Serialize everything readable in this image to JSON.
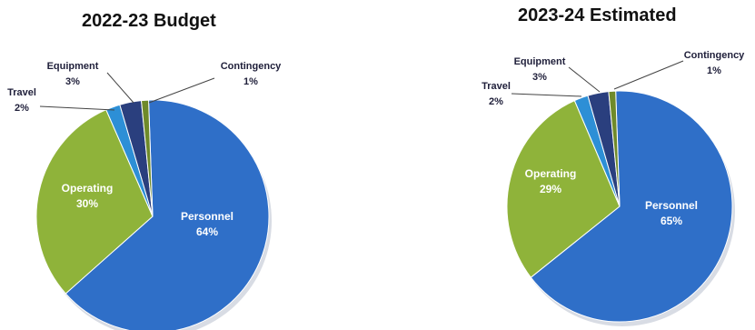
{
  "chart_data": [
    {
      "type": "pie",
      "title": "2022-23 Budget",
      "slices": [
        {
          "label": "Personnel",
          "value": 64,
          "display": "64%",
          "color": "#2f6fc8"
        },
        {
          "label": "Operating",
          "value": 30,
          "display": "30%",
          "color": "#8fb33a"
        },
        {
          "label": "Travel",
          "value": 2,
          "display": "2%",
          "color": "#2d8fd6"
        },
        {
          "label": "Equipment",
          "value": 3,
          "display": "3%",
          "color": "#2a3f7e"
        },
        {
          "label": "Contingency",
          "value": 1,
          "display": "1%",
          "color": "#6f8a2a"
        }
      ]
    },
    {
      "type": "pie",
      "title": "2023-24 Estimated",
      "slices": [
        {
          "label": "Personnel",
          "value": 65,
          "display": "65%",
          "color": "#2f6fc8"
        },
        {
          "label": "Operating",
          "value": 29,
          "display": "29%",
          "color": "#8fb33a"
        },
        {
          "label": "Travel",
          "value": 2,
          "display": "2%",
          "color": "#2d8fd6"
        },
        {
          "label": "Equipment",
          "value": 3,
          "display": "3%",
          "color": "#2a3f7e"
        },
        {
          "label": "Contingency",
          "value": 1,
          "display": "1%",
          "color": "#6f8a2a"
        }
      ]
    }
  ]
}
